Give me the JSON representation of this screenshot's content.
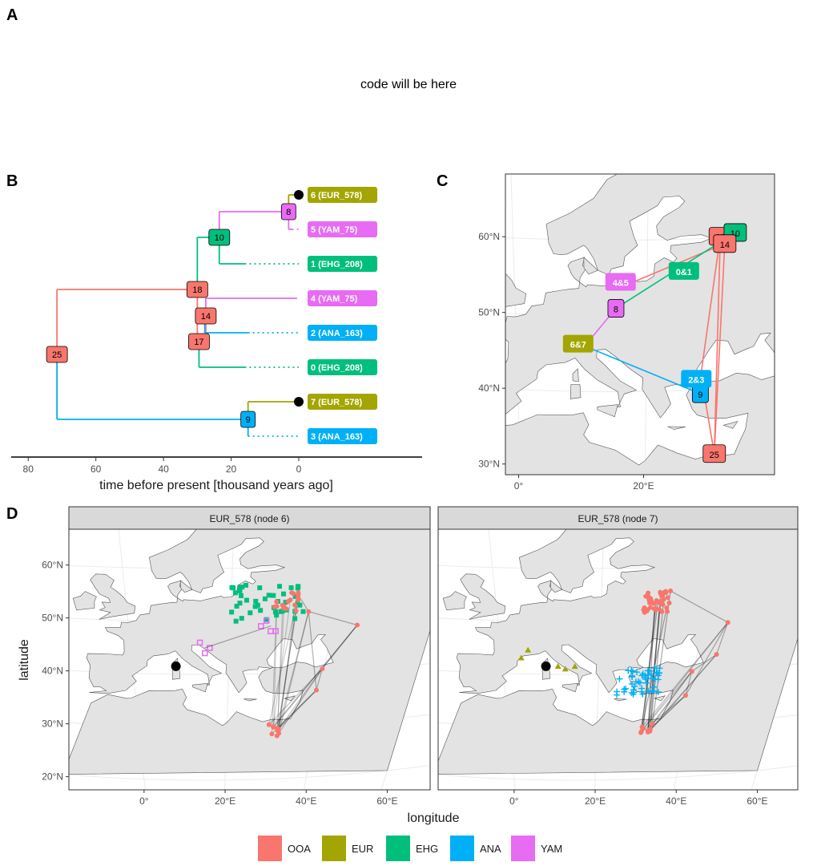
{
  "panels": {
    "a": {
      "letter": "A",
      "text": "code will be here"
    },
    "b": {
      "letter": "B"
    },
    "c": {
      "letter": "C"
    },
    "d": {
      "letter": "D"
    }
  },
  "colors": {
    "OOA": "#f8766d",
    "EUR": "#a3a500",
    "EHG": "#00bf7d",
    "ANA": "#00b0f6",
    "YAM": "#e76bf3"
  },
  "chart_data": [
    {
      "type": "tree",
      "panel": "B",
      "xlabel": "time before present [thousand years ago]",
      "xticks": [
        80,
        60,
        40,
        20,
        0
      ],
      "xlim": [
        85,
        -36
      ],
      "tips": [
        {
          "id": 6,
          "label": "6 (EUR_578)",
          "pop": "EUR",
          "time": 0,
          "sampled_point": true
        },
        {
          "id": 5,
          "label": "5 (YAM_75)",
          "pop": "YAM",
          "time": 0
        },
        {
          "id": 1,
          "label": "1 (EHG_208)",
          "pop": "EHG",
          "time": 0
        },
        {
          "id": 4,
          "label": "4 (YAM_75)",
          "pop": "YAM",
          "time": 0
        },
        {
          "id": 2,
          "label": "2 (ANA_163)",
          "pop": "ANA",
          "time": 0
        },
        {
          "id": 0,
          "label": "0 (EHG_208)",
          "pop": "EHG",
          "time": 0
        },
        {
          "id": 7,
          "label": "7 (EUR_578)",
          "pop": "EUR",
          "time": 0,
          "sampled_point": true
        },
        {
          "id": 3,
          "label": "3 (ANA_163)",
          "pop": "ANA",
          "time": 0
        }
      ],
      "nodes": [
        {
          "id": 25,
          "label": "25",
          "time": 71.5,
          "pop": "OOA"
        },
        {
          "id": 18,
          "label": "18",
          "time": 30,
          "pop": "OOA"
        },
        {
          "id": 14,
          "label": "14",
          "time": 27.5,
          "pop": "OOA"
        },
        {
          "id": 17,
          "label": "17",
          "time": 29.5,
          "pop": "OOA"
        },
        {
          "id": 10,
          "label": "10",
          "time": 23.5,
          "pop": "EHG"
        },
        {
          "id": 8,
          "label": "8",
          "time": 3,
          "pop": "YAM"
        },
        {
          "id": 9,
          "label": "9",
          "time": 15,
          "pop": "ANA"
        }
      ]
    },
    {
      "type": "map",
      "panel": "C",
      "lat_ticks": [
        "30°N",
        "40°N",
        "50°N",
        "60°N"
      ],
      "lon_ticks": [
        "0°",
        "20°E"
      ],
      "edge_labels": [
        {
          "label": "0&1",
          "pop": "EHG"
        },
        {
          "label": "4&5",
          "pop": "YAM"
        },
        {
          "label": "6&7",
          "pop": "EUR"
        },
        {
          "label": "2&3",
          "pop": "ANA"
        }
      ],
      "node_labels": [
        {
          "label": "10",
          "pop": "EHG"
        },
        {
          "label": "14",
          "pop": "OOA"
        },
        {
          "label": "18",
          "pop": "OOA"
        },
        {
          "label": "8",
          "pop": "YAM"
        },
        {
          "label": "9",
          "pop": "ANA"
        },
        {
          "label": "25",
          "pop": "OOA"
        }
      ]
    },
    {
      "type": "scatter-map",
      "panel": "D",
      "xlabel": "longitude",
      "ylabel": "latitude",
      "lat_ticks": [
        "20°N",
        "30°N",
        "40°N",
        "50°N",
        "60°N"
      ],
      "lon_ticks": [
        "0°",
        "20°E",
        "40°E",
        "60°E"
      ],
      "facets": [
        {
          "title": "EUR_578 (node 6)"
        },
        {
          "title": "EUR_578 (node 7)"
        }
      ]
    }
  ],
  "legend": [
    "OOA",
    "EUR",
    "EHG",
    "ANA",
    "YAM"
  ]
}
